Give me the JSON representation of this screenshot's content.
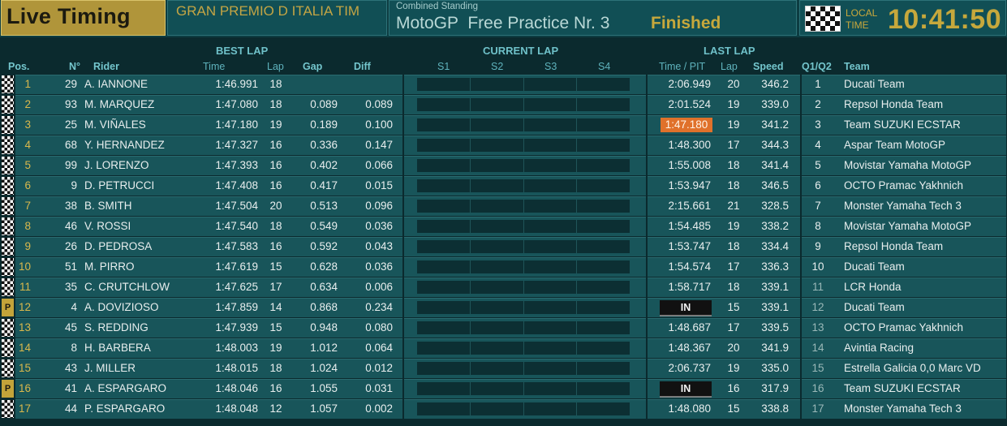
{
  "header": {
    "brand": "Live Timing",
    "event": "GRAN PREMIO D ITALIA TIM",
    "combined_label": "Combined Standing",
    "session": "MotoGP  Free Practice Nr. 3",
    "status": "Finished",
    "local_time_label": "LOCAL TIME",
    "clock": "10:41:50"
  },
  "groups": {
    "best_lap": "BEST LAP",
    "current_lap": "CURRENT LAP",
    "last_lap": "LAST LAP"
  },
  "columns": {
    "pos": "Pos.",
    "number": "N°",
    "rider": "Rider",
    "time": "Time",
    "lap": "Lap",
    "gap": "Gap",
    "diff": "Diff",
    "s1": "S1",
    "s2": "S2",
    "s3": "S3",
    "s4": "S4",
    "time_pit": "Time / PIT",
    "last_lap": "Lap",
    "speed": "Speed",
    "q": "Q1/Q2",
    "team": "Team"
  },
  "rows": [
    {
      "pos": "1",
      "flag": "checkered",
      "num": "29",
      "rider": "A. IANNONE",
      "best": "1:46.991",
      "blap": "18",
      "gap": "",
      "diff": "",
      "last": "2:06.949",
      "last_state": "normal",
      "llap": "20",
      "speed": "346.2",
      "q": "1",
      "team": "Ducati Team"
    },
    {
      "pos": "2",
      "flag": "checkered",
      "num": "93",
      "rider": "M. MARQUEZ",
      "best": "1:47.080",
      "blap": "18",
      "gap": "0.089",
      "diff": "0.089",
      "last": "2:01.524",
      "last_state": "normal",
      "llap": "19",
      "speed": "339.0",
      "q": "2",
      "team": "Repsol Honda Team"
    },
    {
      "pos": "3",
      "flag": "checkered",
      "num": "25",
      "rider": "M. VIÑALES",
      "best": "1:47.180",
      "blap": "19",
      "gap": "0.189",
      "diff": "0.100",
      "last": "1:47.180",
      "last_state": "highlight",
      "llap": "19",
      "speed": "341.2",
      "q": "3",
      "team": "Team SUZUKI ECSTAR"
    },
    {
      "pos": "4",
      "flag": "checkered",
      "num": "68",
      "rider": "Y. HERNANDEZ",
      "best": "1:47.327",
      "blap": "16",
      "gap": "0.336",
      "diff": "0.147",
      "last": "1:48.300",
      "last_state": "normal",
      "llap": "17",
      "speed": "344.3",
      "q": "4",
      "team": "Aspar Team MotoGP"
    },
    {
      "pos": "5",
      "flag": "checkered",
      "num": "99",
      "rider": "J. LORENZO",
      "best": "1:47.393",
      "blap": "16",
      "gap": "0.402",
      "diff": "0.066",
      "last": "1:55.008",
      "last_state": "normal",
      "llap": "18",
      "speed": "341.4",
      "q": "5",
      "team": "Movistar Yamaha MotoGP"
    },
    {
      "pos": "6",
      "flag": "checkered",
      "num": "9",
      "rider": "D. PETRUCCI",
      "best": "1:47.408",
      "blap": "16",
      "gap": "0.417",
      "diff": "0.015",
      "last": "1:53.947",
      "last_state": "normal",
      "llap": "18",
      "speed": "346.5",
      "q": "6",
      "team": "OCTO Pramac Yakhnich"
    },
    {
      "pos": "7",
      "flag": "checkered",
      "num": "38",
      "rider": "B. SMITH",
      "best": "1:47.504",
      "blap": "20",
      "gap": "0.513",
      "diff": "0.096",
      "last": "2:15.661",
      "last_state": "normal",
      "llap": "21",
      "speed": "328.5",
      "q": "7",
      "team": "Monster Yamaha Tech 3"
    },
    {
      "pos": "8",
      "flag": "checkered",
      "num": "46",
      "rider": "V. ROSSI",
      "best": "1:47.540",
      "blap": "18",
      "gap": "0.549",
      "diff": "0.036",
      "last": "1:54.485",
      "last_state": "normal",
      "llap": "19",
      "speed": "338.2",
      "q": "8",
      "team": "Movistar Yamaha MotoGP"
    },
    {
      "pos": "9",
      "flag": "checkered",
      "num": "26",
      "rider": "D. PEDROSA",
      "best": "1:47.583",
      "blap": "16",
      "gap": "0.592",
      "diff": "0.043",
      "last": "1:53.747",
      "last_state": "normal",
      "llap": "18",
      "speed": "334.4",
      "q": "9",
      "team": "Repsol Honda Team"
    },
    {
      "pos": "10",
      "flag": "checkered",
      "num": "51",
      "rider": "M. PIRRO",
      "best": "1:47.619",
      "blap": "15",
      "gap": "0.628",
      "diff": "0.036",
      "last": "1:54.574",
      "last_state": "normal",
      "llap": "17",
      "speed": "336.3",
      "q": "10",
      "team": "Ducati Team"
    },
    {
      "pos": "11",
      "flag": "checkered",
      "num": "35",
      "rider": "C. CRUTCHLOW",
      "best": "1:47.625",
      "blap": "17",
      "gap": "0.634",
      "diff": "0.006",
      "last": "1:58.717",
      "last_state": "normal",
      "llap": "18",
      "speed": "339.1",
      "q": "11",
      "team": "LCR Honda"
    },
    {
      "pos": "12",
      "flag": "pit",
      "num": "4",
      "rider": "A. DOVIZIOSO",
      "best": "1:47.859",
      "blap": "14",
      "gap": "0.868",
      "diff": "0.234",
      "last": "IN",
      "last_state": "in",
      "llap": "15",
      "speed": "339.1",
      "q": "12",
      "team": "Ducati Team"
    },
    {
      "pos": "13",
      "flag": "checkered",
      "num": "45",
      "rider": "S. REDDING",
      "best": "1:47.939",
      "blap": "15",
      "gap": "0.948",
      "diff": "0.080",
      "last": "1:48.687",
      "last_state": "normal",
      "llap": "17",
      "speed": "339.5",
      "q": "13",
      "team": "OCTO Pramac Yakhnich"
    },
    {
      "pos": "14",
      "flag": "checkered",
      "num": "8",
      "rider": "H. BARBERA",
      "best": "1:48.003",
      "blap": "19",
      "gap": "1.012",
      "diff": "0.064",
      "last": "1:48.367",
      "last_state": "normal",
      "llap": "20",
      "speed": "341.9",
      "q": "14",
      "team": "Avintia Racing"
    },
    {
      "pos": "15",
      "flag": "checkered",
      "num": "43",
      "rider": "J. MILLER",
      "best": "1:48.015",
      "blap": "18",
      "gap": "1.024",
      "diff": "0.012",
      "last": "2:06.737",
      "last_state": "normal",
      "llap": "19",
      "speed": "335.0",
      "q": "15",
      "team": "Estrella Galicia 0,0 Marc VD"
    },
    {
      "pos": "16",
      "flag": "pit",
      "num": "41",
      "rider": "A. ESPARGARO",
      "best": "1:48.046",
      "blap": "16",
      "gap": "1.055",
      "diff": "0.031",
      "last": "IN",
      "last_state": "in",
      "llap": "16",
      "speed": "317.9",
      "q": "16",
      "team": "Team SUZUKI ECSTAR"
    },
    {
      "pos": "17",
      "flag": "checkered",
      "num": "44",
      "rider": "P. ESPARGARO",
      "best": "1:48.048",
      "blap": "12",
      "gap": "1.057",
      "diff": "0.002",
      "last": "1:48.080",
      "last_state": "normal",
      "llap": "15",
      "speed": "338.8",
      "q": "17",
      "team": "Monster Yamaha Tech 3"
    }
  ],
  "pit_flag_text": "P",
  "colors": {
    "brand_gold": "#b0953a",
    "highlight_orange": "#e0712b",
    "header_teal": "#114f55",
    "row_teal": "#18555a"
  }
}
